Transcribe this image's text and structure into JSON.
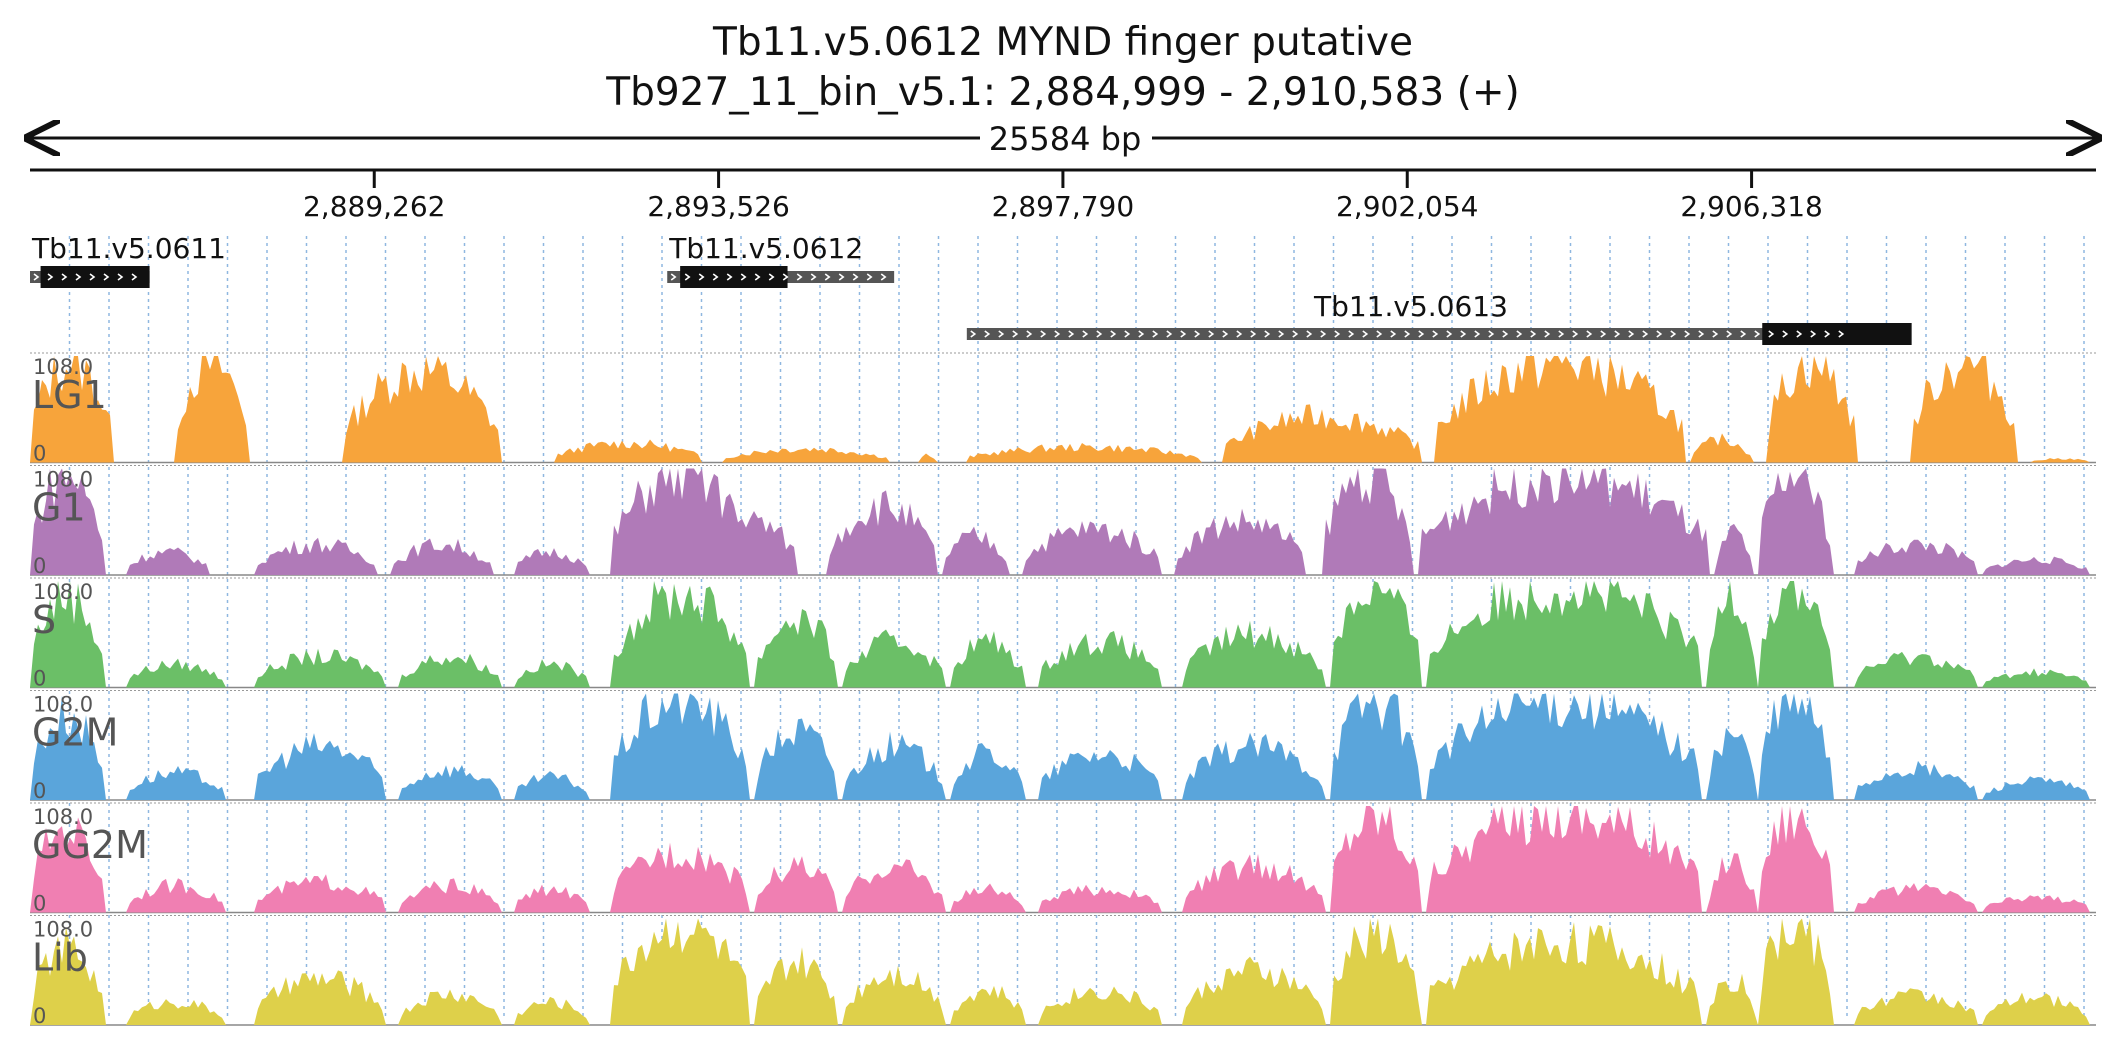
{
  "title": {
    "line1": "Tb11.v5.0612  MYND finger  putative",
    "line2": "Tb927_11_bin_v5.1: 2,884,999 - 2,910,583 (+)"
  },
  "ruler": {
    "span_label": "25584 bp",
    "start": 2884999,
    "end": 2910583,
    "ticks": [
      {
        "pos": 2889262,
        "label": "2,889,262"
      },
      {
        "pos": 2893526,
        "label": "2,893,526"
      },
      {
        "pos": 2897790,
        "label": "2,897,790"
      },
      {
        "pos": 2902054,
        "label": "2,902,054"
      },
      {
        "pos": 2906318,
        "label": "2,906,318"
      }
    ]
  },
  "genes": [
    {
      "name": "Tb11.v5.0611",
      "start": 2884999,
      "end": 2886480,
      "cds_start": 2885130,
      "cds_end": 2886480,
      "strand": "+",
      "row": 0
    },
    {
      "name": "Tb11.v5.0612",
      "start": 2892890,
      "end": 2895700,
      "cds_start": 2893050,
      "cds_end": 2894380,
      "strand": "+",
      "row": 0
    },
    {
      "name": "Tb11.v5.0613",
      "start": 2896600,
      "end": 2907600,
      "cds_start": 2906450,
      "cds_end": 2908300,
      "strand": "+",
      "row": 1
    }
  ],
  "chart_data": {
    "type": "area",
    "x_range": [
      2884999,
      2910583
    ],
    "ylim": [
      0,
      108.0
    ],
    "ymax_label": "108.0",
    "ymin_label": "0",
    "tracks": [
      {
        "name": "LG1",
        "color": "#f7a43b",
        "peaks": [
          [
            2885000,
            2886000,
            130
          ],
          [
            2886800,
            2887700,
            130
          ],
          [
            2888900,
            2890800,
            120
          ],
          [
            2891500,
            2893300,
            25
          ],
          [
            2893600,
            2895600,
            18
          ],
          [
            2896000,
            2896200,
            10
          ],
          [
            2896600,
            2899500,
            20
          ],
          [
            2899800,
            2902200,
            60
          ],
          [
            2902400,
            2905500,
            130
          ],
          [
            2905600,
            2906300,
            30
          ],
          [
            2906500,
            2907600,
            130
          ],
          [
            2908300,
            2909600,
            130
          ],
          [
            2909800,
            2910500,
            5
          ]
        ]
      },
      {
        "name": "G1",
        "color": "#b07ab8",
        "peaks": [
          [
            2885000,
            2885900,
            130
          ],
          [
            2886200,
            2887200,
            30
          ],
          [
            2887800,
            2889300,
            40
          ],
          [
            2889500,
            2890700,
            40
          ],
          [
            2891000,
            2891900,
            30
          ],
          [
            2892200,
            2893900,
            130
          ],
          [
            2893400,
            2894500,
            70
          ],
          [
            2894900,
            2896200,
            90
          ],
          [
            2896300,
            2897100,
            50
          ],
          [
            2897300,
            2899000,
            60
          ],
          [
            2899200,
            2900800,
            70
          ],
          [
            2901000,
            2902100,
            130
          ],
          [
            2902200,
            2905800,
            130
          ],
          [
            2905900,
            2906300,
            55
          ],
          [
            2906400,
            2907300,
            130
          ],
          [
            2907600,
            2909100,
            40
          ],
          [
            2909200,
            2910500,
            20
          ]
        ]
      },
      {
        "name": "S",
        "color": "#6bbf67",
        "peaks": [
          [
            2885000,
            2885900,
            120
          ],
          [
            2886200,
            2887400,
            30
          ],
          [
            2887800,
            2889400,
            40
          ],
          [
            2889600,
            2890800,
            40
          ],
          [
            2891000,
            2891900,
            30
          ],
          [
            2892200,
            2893900,
            120
          ],
          [
            2894000,
            2895000,
            90
          ],
          [
            2895100,
            2896300,
            60
          ],
          [
            2896400,
            2897300,
            60
          ],
          [
            2897500,
            2899000,
            60
          ],
          [
            2899300,
            2901000,
            70
          ],
          [
            2901100,
            2902200,
            130
          ],
          [
            2902300,
            2905700,
            130
          ],
          [
            2905800,
            2906350,
            130
          ],
          [
            2906400,
            2907300,
            130
          ],
          [
            2907600,
            2909100,
            40
          ],
          [
            2909200,
            2910500,
            20
          ]
        ]
      },
      {
        "name": "G2M",
        "color": "#5aa5db",
        "peaks": [
          [
            2885000,
            2885900,
            110
          ],
          [
            2886200,
            2887400,
            35
          ],
          [
            2887800,
            2889400,
            70
          ],
          [
            2889600,
            2890800,
            40
          ],
          [
            2891000,
            2891900,
            30
          ],
          [
            2892200,
            2893900,
            130
          ],
          [
            2894000,
            2895000,
            90
          ],
          [
            2895100,
            2896300,
            70
          ],
          [
            2896400,
            2897300,
            60
          ],
          [
            2897500,
            2899000,
            60
          ],
          [
            2899300,
            2901000,
            70
          ],
          [
            2901100,
            2902200,
            130
          ],
          [
            2902300,
            2905700,
            130
          ],
          [
            2905800,
            2906350,
            90
          ],
          [
            2906400,
            2907300,
            130
          ],
          [
            2907600,
            2909100,
            40
          ],
          [
            2909200,
            2910500,
            25
          ]
        ]
      },
      {
        "name": "GG2M",
        "color": "#f07fb2",
        "peaks": [
          [
            2885000,
            2885900,
            110
          ],
          [
            2886200,
            2887400,
            35
          ],
          [
            2887800,
            2889400,
            40
          ],
          [
            2889600,
            2890800,
            35
          ],
          [
            2891000,
            2891900,
            30
          ],
          [
            2892200,
            2893900,
            80
          ],
          [
            2894000,
            2895000,
            60
          ],
          [
            2895100,
            2896300,
            60
          ],
          [
            2896400,
            2897300,
            30
          ],
          [
            2897500,
            2899000,
            30
          ],
          [
            2899300,
            2901000,
            60
          ],
          [
            2901100,
            2902200,
            130
          ],
          [
            2902300,
            2905700,
            130
          ],
          [
            2905800,
            2906350,
            70
          ],
          [
            2906400,
            2907300,
            130
          ],
          [
            2907600,
            2909100,
            30
          ],
          [
            2909200,
            2910500,
            20
          ]
        ]
      },
      {
        "name": "Lib",
        "color": "#ded04a",
        "peaks": [
          [
            2885000,
            2885900,
            100
          ],
          [
            2886200,
            2887400,
            30
          ],
          [
            2887800,
            2889400,
            60
          ],
          [
            2889600,
            2890800,
            40
          ],
          [
            2891000,
            2891900,
            30
          ],
          [
            2892200,
            2893900,
            130
          ],
          [
            2894000,
            2895000,
            80
          ],
          [
            2895100,
            2896300,
            70
          ],
          [
            2896400,
            2897300,
            45
          ],
          [
            2897500,
            2899000,
            45
          ],
          [
            2899300,
            2901000,
            70
          ],
          [
            2901100,
            2902200,
            120
          ],
          [
            2902300,
            2905700,
            110
          ],
          [
            2905800,
            2906350,
            60
          ],
          [
            2906400,
            2907300,
            130
          ],
          [
            2907600,
            2909100,
            40
          ],
          [
            2909200,
            2910500,
            35
          ]
        ]
      }
    ]
  }
}
